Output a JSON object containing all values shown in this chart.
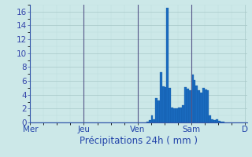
{
  "xlabel": "Précipitations 24h ( mm )",
  "background_color": "#cce8e8",
  "bar_color": "#1a6bbf",
  "bar_edge_color": "#1055a0",
  "ylim": [
    0,
    17
  ],
  "yticks": [
    0,
    2,
    4,
    6,
    8,
    10,
    12,
    14,
    16
  ],
  "day_labels": [
    "Mer",
    "Jeu",
    "Ven",
    "Sam",
    "D"
  ],
  "day_tick_positions": [
    0,
    24,
    48,
    72,
    96
  ],
  "total_bars": 97,
  "bar_values": [
    0,
    0,
    0,
    0,
    0,
    0,
    0,
    0,
    0,
    0,
    0,
    0,
    0,
    0,
    0,
    0,
    0,
    0,
    0,
    0,
    0,
    0,
    0,
    0,
    0,
    0,
    0,
    0,
    0,
    0,
    0,
    0,
    0,
    0,
    0,
    0,
    0,
    0,
    0,
    0,
    0,
    0,
    0,
    0,
    0,
    0,
    0,
    0,
    0,
    0,
    0,
    0.05,
    0.15,
    0.3,
    1.0,
    0.4,
    3.5,
    3.2,
    7.3,
    5.2,
    5.1,
    16.6,
    5.0,
    2.1,
    2.0,
    2.0,
    2.1,
    2.2,
    2.5,
    5.1,
    4.9,
    4.6,
    6.9,
    6.1,
    5.3,
    4.6,
    4.3,
    5.0,
    4.8,
    4.6,
    1.0,
    0.5,
    0.3,
    0.4,
    0.2,
    0.15,
    0.1,
    0.05,
    0,
    0,
    0,
    0,
    0,
    0,
    0,
    0,
    0
  ],
  "grid_major_color": "#a8c8c8",
  "grid_minor_color": "#bbdddd",
  "tick_color": "#3344aa",
  "label_color": "#2244aa",
  "spine_color": "#3355aa",
  "separator_color": "#555588",
  "xlabel_fontsize": 8.5,
  "tick_fontsize": 7.5
}
